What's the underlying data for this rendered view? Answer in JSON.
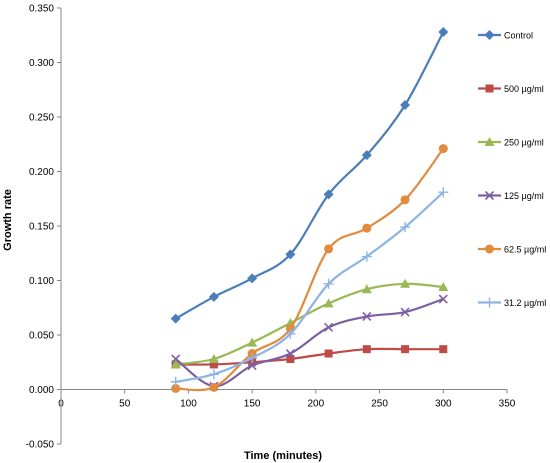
{
  "chart_data": {
    "type": "line",
    "title": "",
    "xlabel": "Time (minutes)",
    "ylabel": "Growth rate",
    "xlim": [
      0,
      350
    ],
    "ylim": [
      -0.05,
      0.35
    ],
    "x_ticks": [
      "0",
      "50",
      "100",
      "150",
      "200",
      "250",
      "300",
      "350"
    ],
    "y_ticks": [
      "-0.050",
      "0.000",
      "0.050",
      "0.100",
      "0.150",
      "0.200",
      "0.250",
      "0.300",
      "0.350"
    ],
    "grid": false,
    "legend_position": "right",
    "x": [
      90,
      120,
      150,
      180,
      210,
      240,
      270,
      300
    ],
    "series": [
      {
        "name": "Control",
        "color": "#4a7ebb",
        "marker": "diamond",
        "values": [
          0.065,
          0.085,
          0.102,
          0.124,
          0.179,
          0.215,
          0.261,
          0.328
        ]
      },
      {
        "name": "500 µg/ml",
        "color": "#be4b48",
        "marker": "square",
        "values": [
          0.023,
          0.023,
          0.025,
          0.028,
          0.033,
          0.037,
          0.037,
          0.037
        ]
      },
      {
        "name": "250 µg/ml",
        "color": "#98b954",
        "marker": "triangle",
        "values": [
          0.023,
          0.028,
          0.043,
          0.061,
          0.079,
          0.092,
          0.097,
          0.094
        ]
      },
      {
        "name": "125 µg/ml",
        "color": "#7d60a0",
        "marker": "x",
        "values": [
          0.028,
          0.003,
          0.022,
          0.033,
          0.057,
          0.067,
          0.071,
          0.083
        ]
      },
      {
        "name": "62.5 µg/ml",
        "color": "#e08b3e",
        "marker": "circle",
        "values": [
          0.001,
          0.002,
          0.033,
          0.056,
          0.129,
          0.148,
          0.174,
          0.221
        ]
      },
      {
        "name": "31.2 µg/ml",
        "color": "#8eb4e3",
        "marker": "plus",
        "values": [
          0.007,
          0.014,
          0.029,
          0.051,
          0.097,
          0.122,
          0.149,
          0.181
        ]
      }
    ]
  }
}
